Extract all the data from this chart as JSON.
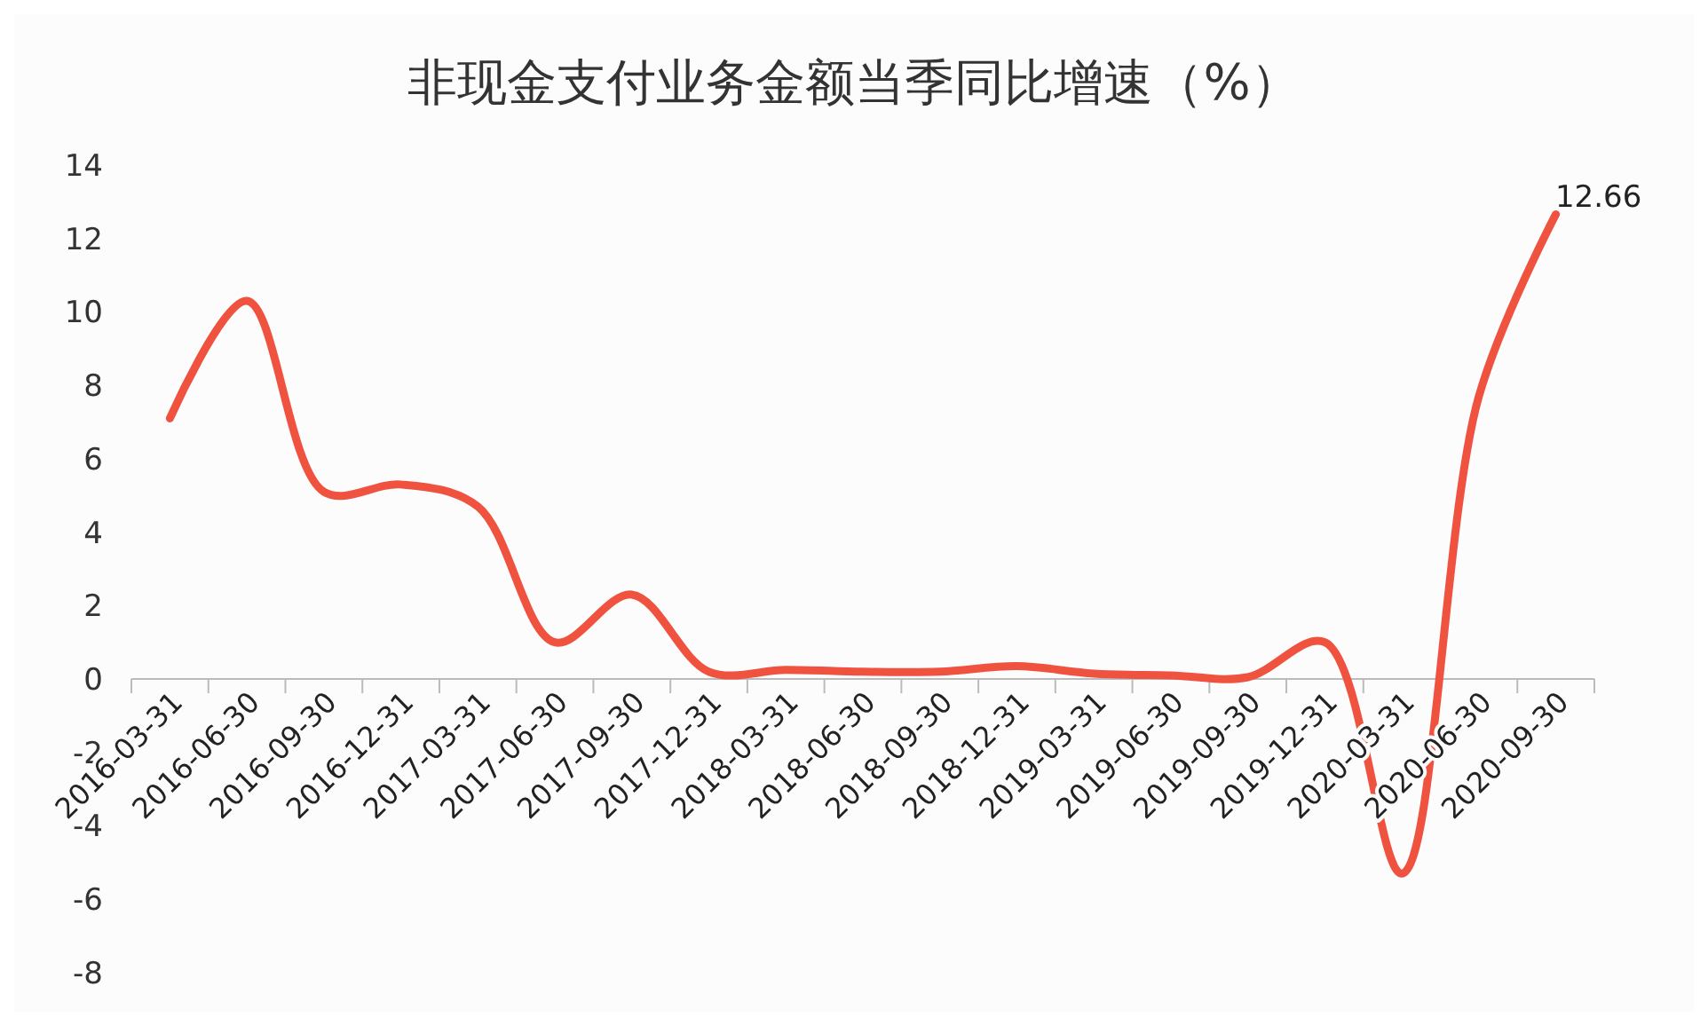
{
  "chart_data": {
    "type": "line",
    "title": "非现金支付业务金额当季同比增速（%）",
    "categories": [
      "2016-03-31",
      "2016-06-30",
      "2016-09-30",
      "2016-12-31",
      "2017-03-31",
      "2017-06-30",
      "2017-09-30",
      "2017-12-31",
      "2018-03-31",
      "2018-06-30",
      "2018-09-30",
      "2018-12-31",
      "2019-03-31",
      "2019-06-30",
      "2019-09-30",
      "2019-12-31",
      "2020-03-31",
      "2020-06-30",
      "2020-09-30"
    ],
    "series": [
      {
        "color": "#ef5340",
        "values": [
          7.1,
          10.3,
          5.1,
          5.3,
          4.7,
          1.0,
          2.3,
          0.2,
          0.25,
          0.2,
          0.2,
          0.35,
          0.15,
          0.1,
          0.05,
          1.0,
          -5.3,
          7.7,
          12.66
        ],
        "value_labels": [
          null,
          null,
          null,
          null,
          null,
          null,
          null,
          null,
          null,
          null,
          null,
          null,
          null,
          null,
          null,
          null,
          null,
          null,
          "12.66"
        ]
      }
    ],
    "ylim": [
      -8,
      14
    ],
    "yticks": [
      -8,
      -6,
      -4,
      -2,
      0,
      2,
      4,
      6,
      8,
      10,
      12,
      14
    ],
    "grid": false,
    "marker": "none",
    "line_style": "solid"
  }
}
